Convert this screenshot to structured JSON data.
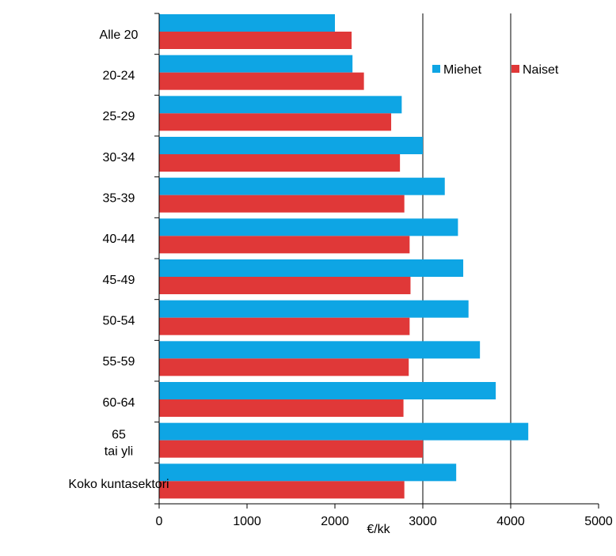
{
  "chart_data": {
    "type": "bar",
    "orientation": "horizontal",
    "categories": [
      "Alle 20",
      "20-24",
      "25-29",
      "30-34",
      "35-39",
      "40-44",
      "45-49",
      "50-54",
      "55-59",
      "60-64",
      "65\ntai yli",
      "Koko kuntasektori"
    ],
    "series": [
      {
        "name": "Miehet",
        "color": "#0ea5e4",
        "values": [
          2000,
          2200,
          2760,
          3000,
          3250,
          3400,
          3460,
          3520,
          3650,
          3830,
          4200,
          3380
        ]
      },
      {
        "name": "Naiset",
        "color": "#e03838",
        "values": [
          2190,
          2330,
          2640,
          2740,
          2790,
          2850,
          2860,
          2850,
          2840,
          2780,
          3000,
          2790
        ]
      }
    ],
    "xlabel": "€/kk",
    "ylabel": "",
    "xlim": [
      0,
      5000
    ],
    "xticks": [
      0,
      1000,
      2000,
      3000,
      4000,
      5000
    ],
    "grid": "vertical gridlines at 3000 and 4000",
    "legend": "top-right"
  }
}
